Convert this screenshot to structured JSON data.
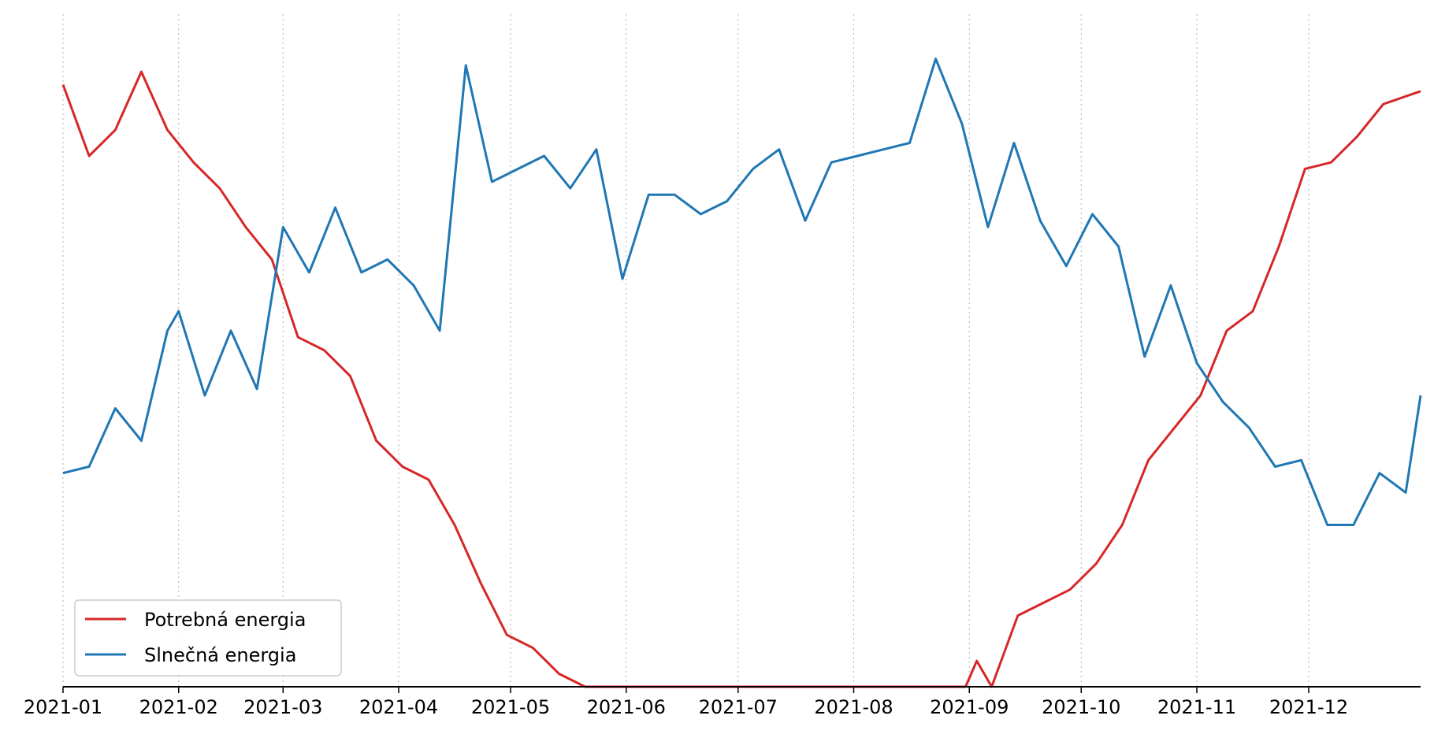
{
  "chart_data": {
    "type": "line",
    "title": "",
    "xlabel": "",
    "ylabel": "",
    "x_ticks": [
      "2021-01",
      "2021-02",
      "2021-03",
      "2021-04",
      "2021-05",
      "2021-06",
      "2021-07",
      "2021-08",
      "2021-09",
      "2021-10",
      "2021-11",
      "2021-12"
    ],
    "x_range": [
      "2021-01-01",
      "2021-12-31"
    ],
    "y_range": [
      0,
      1
    ],
    "y_axis_visible": false,
    "grid": "vertical dotted at month ticks",
    "legend_position": "lower-left",
    "series": [
      {
        "name": "Potrebná energia",
        "color": "#d62728",
        "x": [
          "2021-01-01",
          "2021-01-08",
          "2021-01-15",
          "2021-01-22",
          "2021-01-29",
          "2021-02-05",
          "2021-02-12",
          "2021-02-19",
          "2021-02-26",
          "2021-03-05",
          "2021-03-12",
          "2021-03-19",
          "2021-03-26",
          "2021-04-02",
          "2021-04-09",
          "2021-04-16",
          "2021-04-23",
          "2021-04-30",
          "2021-05-07",
          "2021-05-14",
          "2021-05-21",
          "2021-05-28",
          "2021-06-04",
          "2021-06-30",
          "2021-07-31",
          "2021-08-31",
          "2021-09-03",
          "2021-09-07",
          "2021-09-14",
          "2021-09-21",
          "2021-09-28",
          "2021-10-05",
          "2021-10-12",
          "2021-10-19",
          "2021-10-26",
          "2021-11-02",
          "2021-11-09",
          "2021-11-16",
          "2021-11-23",
          "2021-11-30",
          "2021-12-07",
          "2021-12-14",
          "2021-12-21",
          "2021-12-31"
        ],
        "values": [
          0.93,
          0.82,
          0.86,
          0.95,
          0.86,
          0.81,
          0.77,
          0.71,
          0.66,
          0.54,
          0.52,
          0.48,
          0.38,
          0.34,
          0.32,
          0.25,
          0.16,
          0.08,
          0.06,
          0.02,
          0.0,
          0.0,
          0.0,
          0.0,
          0.0,
          0.0,
          0.04,
          0.0,
          0.11,
          0.13,
          0.15,
          0.19,
          0.25,
          0.35,
          0.4,
          0.45,
          0.55,
          0.58,
          0.68,
          0.8,
          0.81,
          0.85,
          0.9,
          0.92
        ]
      },
      {
        "name": "Slnečná energia",
        "color": "#1f77b4",
        "x": [
          "2021-01-01",
          "2021-01-08",
          "2021-01-15",
          "2021-01-22",
          "2021-01-29",
          "2021-02-01",
          "2021-02-08",
          "2021-02-15",
          "2021-02-22",
          "2021-03-01",
          "2021-03-08",
          "2021-03-15",
          "2021-03-22",
          "2021-03-29",
          "2021-04-05",
          "2021-04-12",
          "2021-04-19",
          "2021-04-26",
          "2021-05-03",
          "2021-05-10",
          "2021-05-17",
          "2021-05-24",
          "2021-05-31",
          "2021-06-07",
          "2021-06-14",
          "2021-06-21",
          "2021-06-28",
          "2021-07-05",
          "2021-07-12",
          "2021-07-19",
          "2021-07-26",
          "2021-08-02",
          "2021-08-09",
          "2021-08-16",
          "2021-08-23",
          "2021-08-30",
          "2021-09-06",
          "2021-09-13",
          "2021-09-20",
          "2021-09-27",
          "2021-10-04",
          "2021-10-11",
          "2021-10-18",
          "2021-10-25",
          "2021-11-01",
          "2021-11-08",
          "2021-11-15",
          "2021-11-22",
          "2021-11-29",
          "2021-12-06",
          "2021-12-13",
          "2021-12-20",
          "2021-12-27",
          "2021-12-31"
        ],
        "values": [
          0.33,
          0.34,
          0.43,
          0.38,
          0.55,
          0.58,
          0.45,
          0.55,
          0.46,
          0.71,
          0.64,
          0.74,
          0.64,
          0.66,
          0.62,
          0.55,
          0.96,
          0.78,
          0.8,
          0.82,
          0.77,
          0.83,
          0.63,
          0.76,
          0.76,
          0.73,
          0.75,
          0.8,
          0.83,
          0.72,
          0.81,
          0.82,
          0.83,
          0.84,
          0.97,
          0.87,
          0.71,
          0.84,
          0.72,
          0.65,
          0.73,
          0.68,
          0.51,
          0.62,
          0.5,
          0.44,
          0.4,
          0.34,
          0.35,
          0.25,
          0.25,
          0.33,
          0.3,
          0.45
        ]
      }
    ]
  }
}
